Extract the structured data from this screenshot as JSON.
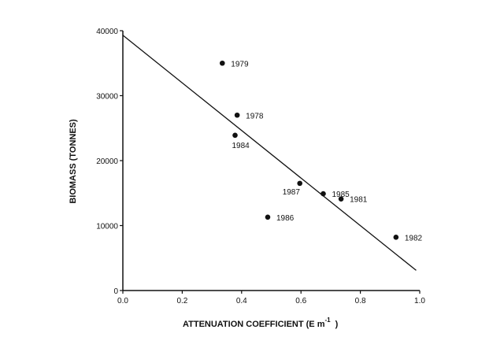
{
  "chart_data": {
    "type": "scatter",
    "title": "",
    "xlabel": "ATTENUATION COEFFICIENT (E m",
    "xlabel_superscript": "-1",
    "xlabel_close": ")",
    "ylabel": "BIOMASS (TONNES)",
    "xlim": [
      0.0,
      1.0
    ],
    "ylim": [
      0,
      40000
    ],
    "xticks": [
      "0.0",
      "0.2",
      "0.4",
      "0.6",
      "0.8",
      "1.0"
    ],
    "yticks": [
      "0",
      "10000",
      "20000",
      "30000",
      "40000"
    ],
    "grid": false,
    "legend": "none",
    "points": [
      {
        "label": "1979",
        "x": 0.335,
        "y": 35000
      },
      {
        "label": "1978",
        "x": 0.385,
        "y": 27000
      },
      {
        "label": "1984",
        "x": 0.378,
        "y": 23900
      },
      {
        "label": "1987",
        "x": 0.596,
        "y": 16500
      },
      {
        "label": "1985",
        "x": 0.675,
        "y": 14900
      },
      {
        "label": "1981",
        "x": 0.735,
        "y": 14100
      },
      {
        "label": "1986",
        "x": 0.488,
        "y": 11300
      },
      {
        "label": "1982",
        "x": 0.92,
        "y": 8200
      }
    ],
    "fit_line": {
      "x": [
        0.0,
        0.988
      ],
      "y": [
        39300,
        3100
      ]
    },
    "colors": {
      "marks": "#111111",
      "background": "#ffffff"
    }
  }
}
